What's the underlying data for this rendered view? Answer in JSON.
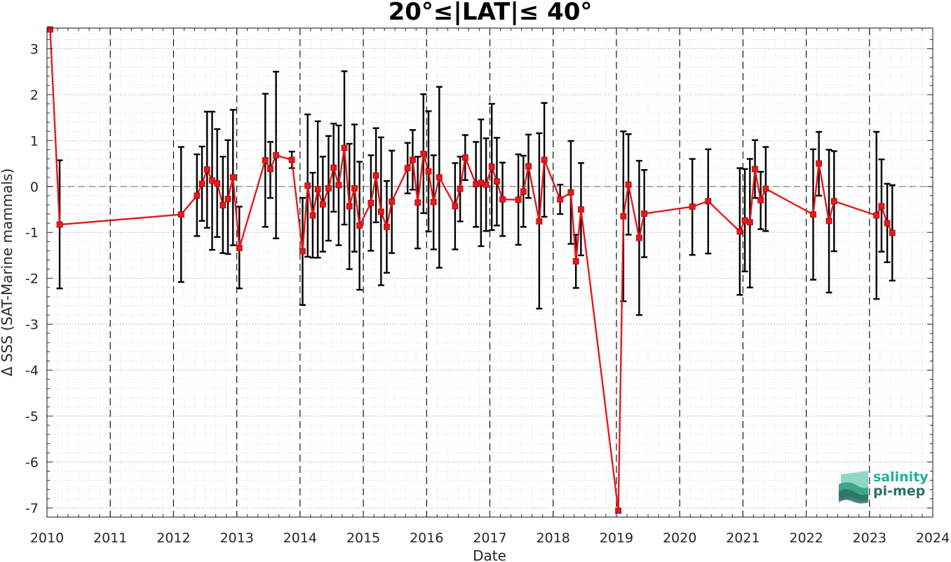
{
  "chart_data": {
    "type": "line",
    "title": "20°≤|LAT|≤ 40°",
    "xlabel": "Date",
    "ylabel": "Δ SSS (SAT-Marine mammals)",
    "xlim": [
      2010,
      2024
    ],
    "ylim": [
      -7.2,
      3.45
    ],
    "xticks": [
      "2010",
      "2011",
      "2012",
      "2013",
      "2014",
      "2015",
      "2016",
      "2017",
      "2018",
      "2019",
      "2020",
      "2021",
      "2022",
      "2023",
      "2024"
    ],
    "yticks": [
      "3",
      "2",
      "1",
      "0",
      "-1",
      "-2",
      "-3",
      "-4",
      "-5",
      "-6",
      "-7"
    ],
    "grid": true,
    "zero_line": true,
    "year_lines": true,
    "series": [
      {
        "color": "#e41a1c",
        "errorbar_color": "#000000",
        "points": [
          {
            "x": 2010.05,
            "y": 3.42,
            "lo": null,
            "hi": null
          },
          {
            "x": 2010.2,
            "y": -0.83,
            "lo": -2.22,
            "hi": 0.57
          },
          {
            "x": 2012.12,
            "y": -0.61,
            "lo": -2.08,
            "hi": 0.86
          },
          {
            "x": 2012.37,
            "y": -0.2,
            "lo": -1.08,
            "hi": 0.7
          },
          {
            "x": 2012.45,
            "y": 0.06,
            "lo": -0.75,
            "hi": 0.87
          },
          {
            "x": 2012.53,
            "y": 0.37,
            "lo": -0.9,
            "hi": 1.63
          },
          {
            "x": 2012.61,
            "y": 0.13,
            "lo": -1.38,
            "hi": 1.63
          },
          {
            "x": 2012.69,
            "y": 0.07,
            "lo": -1.1,
            "hi": 1.25
          },
          {
            "x": 2012.78,
            "y": -0.41,
            "lo": -1.45,
            "hi": 0.65
          },
          {
            "x": 2012.86,
            "y": -0.27,
            "lo": -1.47,
            "hi": 1.01
          },
          {
            "x": 2012.94,
            "y": 0.2,
            "lo": -1.28,
            "hi": 1.67
          },
          {
            "x": 2013.04,
            "y": -1.34,
            "lo": -2.22,
            "hi": -0.44
          },
          {
            "x": 2013.45,
            "y": 0.57,
            "lo": -0.88,
            "hi": 2.02
          },
          {
            "x": 2013.53,
            "y": 0.38,
            "lo": -0.25,
            "hi": 0.97
          },
          {
            "x": 2013.62,
            "y": 0.68,
            "lo": -1.13,
            "hi": 2.5
          },
          {
            "x": 2013.87,
            "y": 0.58,
            "lo": 0.4,
            "hi": 0.76
          },
          {
            "x": 2014.04,
            "y": -1.41,
            "lo": -2.58,
            "hi": -0.25
          },
          {
            "x": 2014.12,
            "y": 0.02,
            "lo": -1.53,
            "hi": 1.57
          },
          {
            "x": 2014.2,
            "y": -0.63,
            "lo": -1.55,
            "hi": 0.3
          },
          {
            "x": 2014.28,
            "y": -0.06,
            "lo": -1.55,
            "hi": 1.42
          },
          {
            "x": 2014.36,
            "y": -0.39,
            "lo": -1.42,
            "hi": 0.65
          },
          {
            "x": 2014.45,
            "y": -0.04,
            "lo": -1.18,
            "hi": 1.1
          },
          {
            "x": 2014.53,
            "y": 0.41,
            "lo": -0.55,
            "hi": 1.37
          },
          {
            "x": 2014.61,
            "y": 0.03,
            "lo": -1.28,
            "hi": 1.33
          },
          {
            "x": 2014.7,
            "y": 0.84,
            "lo": -0.83,
            "hi": 2.51
          },
          {
            "x": 2014.78,
            "y": -0.43,
            "lo": -1.8,
            "hi": 0.93
          },
          {
            "x": 2014.86,
            "y": -0.04,
            "lo": -1.42,
            "hi": 1.35
          },
          {
            "x": 2014.94,
            "y": -0.85,
            "lo": -2.25,
            "hi": 0.54
          },
          {
            "x": 2015.12,
            "y": -0.36,
            "lo": -1.4,
            "hi": 0.68
          },
          {
            "x": 2015.2,
            "y": 0.24,
            "lo": -0.78,
            "hi": 1.27
          },
          {
            "x": 2015.28,
            "y": -0.55,
            "lo": -2.15,
            "hi": 1.07
          },
          {
            "x": 2015.37,
            "y": -0.88,
            "lo": -1.88,
            "hi": 0.12
          },
          {
            "x": 2015.45,
            "y": -0.33,
            "lo": -1.45,
            "hi": 0.78
          },
          {
            "x": 2015.7,
            "y": 0.4,
            "lo": -0.15,
            "hi": 0.95
          },
          {
            "x": 2015.78,
            "y": 0.58,
            "lo": -0.07,
            "hi": 1.23
          },
          {
            "x": 2015.86,
            "y": -0.35,
            "lo": -1.35,
            "hi": 0.65
          },
          {
            "x": 2015.95,
            "y": 0.71,
            "lo": -0.58,
            "hi": 2.01
          },
          {
            "x": 2016.03,
            "y": 0.33,
            "lo": -0.98,
            "hi": 1.64
          },
          {
            "x": 2016.11,
            "y": -0.34,
            "lo": -1.37,
            "hi": 0.68
          },
          {
            "x": 2016.2,
            "y": 0.2,
            "lo": -1.77,
            "hi": 2.17
          },
          {
            "x": 2016.45,
            "y": -0.43,
            "lo": -1.37,
            "hi": 0.51
          },
          {
            "x": 2016.53,
            "y": -0.05,
            "lo": -0.76,
            "hi": 0.65
          },
          {
            "x": 2016.61,
            "y": 0.63,
            "lo": 0.14,
            "hi": 1.12
          },
          {
            "x": 2016.78,
            "y": 0.05,
            "lo": -0.88,
            "hi": 0.97
          },
          {
            "x": 2016.86,
            "y": 0.08,
            "lo": -1.3,
            "hi": 1.46
          },
          {
            "x": 2016.94,
            "y": 0.04,
            "lo": -0.97,
            "hi": 1.05
          },
          {
            "x": 2017.03,
            "y": 0.43,
            "lo": -0.95,
            "hi": 1.8
          },
          {
            "x": 2017.11,
            "y": 0.11,
            "lo": -0.85,
            "hi": 1.06
          },
          {
            "x": 2017.2,
            "y": -0.28,
            "lo": -1.08,
            "hi": 0.52
          },
          {
            "x": 2017.45,
            "y": -0.29,
            "lo": -1.27,
            "hi": 0.7
          },
          {
            "x": 2017.53,
            "y": -0.11,
            "lo": -0.88,
            "hi": 0.67
          },
          {
            "x": 2017.61,
            "y": 0.44,
            "lo": -0.25,
            "hi": 1.13
          },
          {
            "x": 2017.78,
            "y": -0.76,
            "lo": -2.66,
            "hi": 1.16
          },
          {
            "x": 2017.86,
            "y": 0.58,
            "lo": -0.66,
            "hi": 1.82
          },
          {
            "x": 2018.11,
            "y": -0.28,
            "lo": -0.6,
            "hi": 0.04
          },
          {
            "x": 2018.28,
            "y": -0.13,
            "lo": -1.25,
            "hi": 0.99
          },
          {
            "x": 2018.36,
            "y": -1.63,
            "lo": -2.21,
            "hi": -1.05
          },
          {
            "x": 2018.44,
            "y": -0.5,
            "lo": -1.5,
            "hi": 0.51
          },
          {
            "x": 2019.03,
            "y": -7.06,
            "lo": null,
            "hi": null
          },
          {
            "x": 2019.11,
            "y": -0.65,
            "lo": -2.5,
            "hi": 1.2
          },
          {
            "x": 2019.19,
            "y": 0.04,
            "lo": -1.05,
            "hi": 1.14
          },
          {
            "x": 2019.36,
            "y": -1.12,
            "lo": -2.8,
            "hi": 0.56
          },
          {
            "x": 2019.44,
            "y": -0.59,
            "lo": -1.54,
            "hi": 0.36
          },
          {
            "x": 2020.2,
            "y": -0.44,
            "lo": -1.49,
            "hi": 0.6
          },
          {
            "x": 2020.45,
            "y": -0.32,
            "lo": -1.46,
            "hi": 0.81
          },
          {
            "x": 2020.95,
            "y": -0.98,
            "lo": -2.36,
            "hi": 0.4
          },
          {
            "x": 2021.03,
            "y": -0.74,
            "lo": -1.85,
            "hi": 0.38
          },
          {
            "x": 2021.11,
            "y": -0.78,
            "lo": -2.2,
            "hi": 0.6
          },
          {
            "x": 2021.19,
            "y": 0.38,
            "lo": -0.25,
            "hi": 1.01
          },
          {
            "x": 2021.28,
            "y": -0.3,
            "lo": -0.93,
            "hi": 0.32
          },
          {
            "x": 2021.36,
            "y": -0.05,
            "lo": -0.97,
            "hi": 0.86
          },
          {
            "x": 2022.11,
            "y": -0.61,
            "lo": -2.03,
            "hi": 0.81
          },
          {
            "x": 2022.2,
            "y": 0.5,
            "lo": -0.2,
            "hi": 1.19
          },
          {
            "x": 2022.36,
            "y": -0.75,
            "lo": -2.31,
            "hi": 0.8
          },
          {
            "x": 2022.44,
            "y": -0.32,
            "lo": -1.41,
            "hi": 0.77
          },
          {
            "x": 2023.11,
            "y": -0.63,
            "lo": -2.45,
            "hi": 1.19
          },
          {
            "x": 2023.19,
            "y": -0.43,
            "lo": -1.42,
            "hi": 0.59
          },
          {
            "x": 2023.28,
            "y": -0.8,
            "lo": -1.65,
            "hi": 0.06
          },
          {
            "x": 2023.36,
            "y": -1.01,
            "lo": -2.05,
            "hi": 0.03
          }
        ]
      }
    ]
  },
  "logo": {
    "line1": "salinity",
    "line2": "pi-mep",
    "color1": "#1ab394",
    "color2": "#2c6e6a"
  }
}
